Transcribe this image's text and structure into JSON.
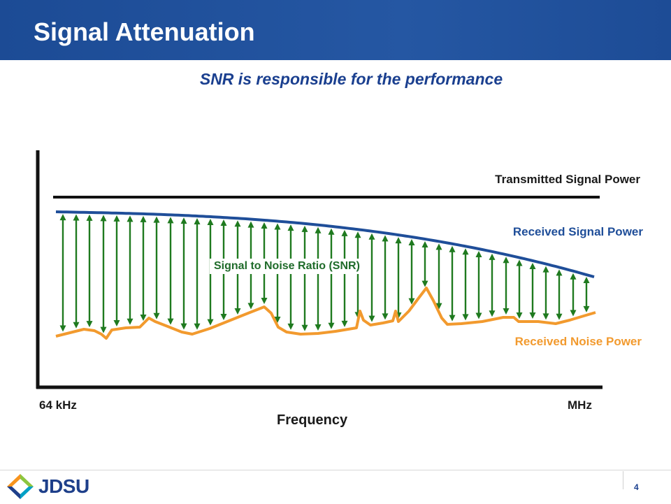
{
  "slide": {
    "title": "Signal Attenuation",
    "subtitle": "SNR is responsible for the performance",
    "page_number": "4"
  },
  "diagram": {
    "labels": {
      "transmitted": "Transmitted Signal Power",
      "received_signal": "Received Signal Power",
      "received_noise": "Received Noise Power",
      "snr": "Signal to Noise Ratio (SNR)",
      "x_start": "64 kHz",
      "x_end": "MHz",
      "x_axis": "Frequency"
    },
    "colors": {
      "axis": "#111111",
      "transmitted": "#111111",
      "received_signal": "#1f4e99",
      "received_noise": "#f29a2e",
      "snr_arrows": "#1f7a1f"
    }
  },
  "footer": {
    "logo_text": "JDSU",
    "logo_icon": "jdsu-logo-icon"
  }
}
